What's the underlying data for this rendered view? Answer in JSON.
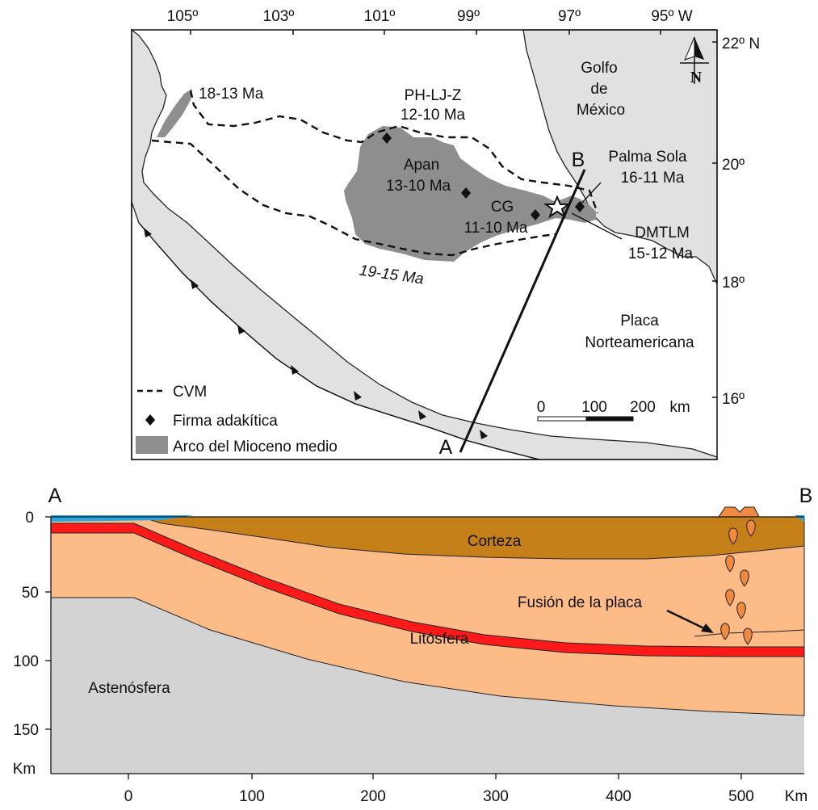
{
  "map": {
    "lon_labels": [
      "105º",
      "103º",
      "101º",
      "99º",
      "97º",
      "95º W"
    ],
    "lat_labels": [
      "22º N",
      "20º",
      "18º",
      "16º"
    ],
    "north_label": "N",
    "gulf_label": [
      "Golfo",
      "de",
      "México"
    ],
    "plate_label": [
      "Placa",
      "Norteamericana"
    ],
    "arc_labels": {
      "northwest": "18-13 Ma",
      "phljz": [
        "PH-LJ-Z",
        "12-10 Ma"
      ],
      "apan": [
        "Apan",
        "13-10 Ma"
      ],
      "cg": [
        "CG",
        "11-10 Ma"
      ],
      "palma_sola": [
        "Palma Sola",
        "16-11 Ma"
      ],
      "dmtlm": [
        "DMTLM",
        "15-12 Ma"
      ],
      "south": "19-15 Ma"
    },
    "section_end_a": "A",
    "section_end_b": "B",
    "scale": {
      "labels": [
        "0",
        "100",
        "200"
      ],
      "unit": "km"
    },
    "legend": [
      {
        "label": "CVM",
        "symbol": "dashed-line"
      },
      {
        "label": "Firma adakítica",
        "symbol": "diamond"
      },
      {
        "label": "Arco del Mioceno medio",
        "symbol": "gray-box"
      }
    ]
  },
  "section": {
    "end_a": "A",
    "end_b": "B",
    "layers": {
      "crust": "Corteza",
      "lithosphere": "Litósfera",
      "asthenosphere": "Astenósfera"
    },
    "annotation": "Fusión de la placa",
    "x_ticks": [
      "0",
      "100",
      "200",
      "300",
      "400",
      "500"
    ],
    "x_unit": "Km",
    "y_ticks": [
      "0",
      "50",
      "100",
      "150"
    ],
    "y_unit": "Km",
    "colors": {
      "crust": "#c6801a",
      "lithosphere": "#fdbb88",
      "asthenosphere": "#d3d3d3",
      "slab": "#ff1a1a",
      "ocean": "#2aa6e0",
      "melt": "#f08a40"
    }
  }
}
